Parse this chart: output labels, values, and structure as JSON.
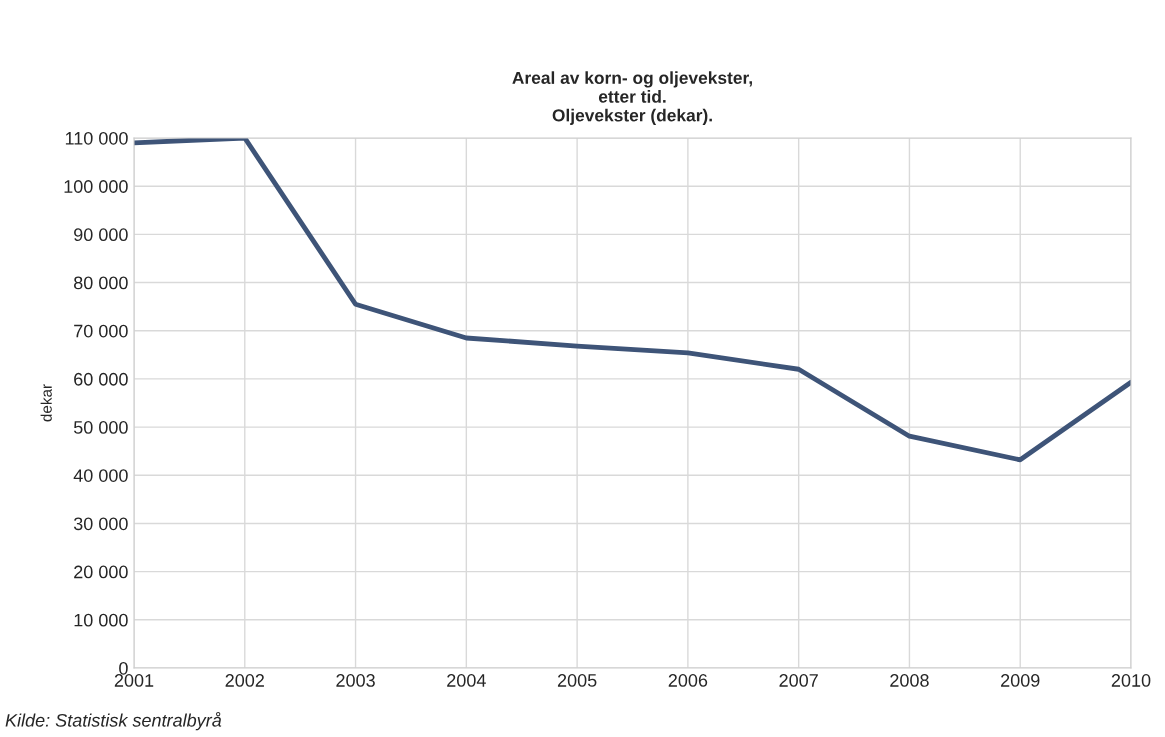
{
  "chart_data": {
    "type": "line",
    "title": "Areal av korn- og oljevekster,\netter tid.\nOljevekster (dekar).",
    "ylabel": "dekar",
    "x": [
      2001,
      2002,
      2003,
      2004,
      2005,
      2006,
      2007,
      2008,
      2009,
      2010
    ],
    "series": [
      {
        "color": "#3e5478",
        "values": [
          109000,
          110000,
          75500,
          68500,
          66800,
          65400,
          62000,
          48100,
          43200,
          59300
        ]
      }
    ],
    "xlim": [
      2001,
      2010
    ],
    "xticks": [
      2001,
      2002,
      2003,
      2004,
      2005,
      2006,
      2007,
      2008,
      2009,
      2010
    ],
    "ylim": [
      0,
      110000
    ],
    "yticks": [
      0,
      {
        "value": 10000,
        "label": "10 000"
      },
      {
        "value": 20000,
        "label": "20 000"
      },
      {
        "value": 30000,
        "label": "30 000"
      },
      {
        "value": 40000,
        "label": "40 000"
      },
      {
        "value": 50000,
        "label": "50 000"
      },
      {
        "value": 60000,
        "label": "60 000"
      },
      {
        "value": 70000,
        "label": "70 000"
      },
      {
        "value": 80000,
        "label": "80 000"
      },
      {
        "value": 90000,
        "label": "90 000"
      },
      {
        "value": 100000,
        "label": "100 000"
      },
      {
        "value": 110000,
        "label": "110 000"
      }
    ],
    "grid": true,
    "annotations": [
      "Kilde: Statistisk sentralbyrå"
    ]
  }
}
